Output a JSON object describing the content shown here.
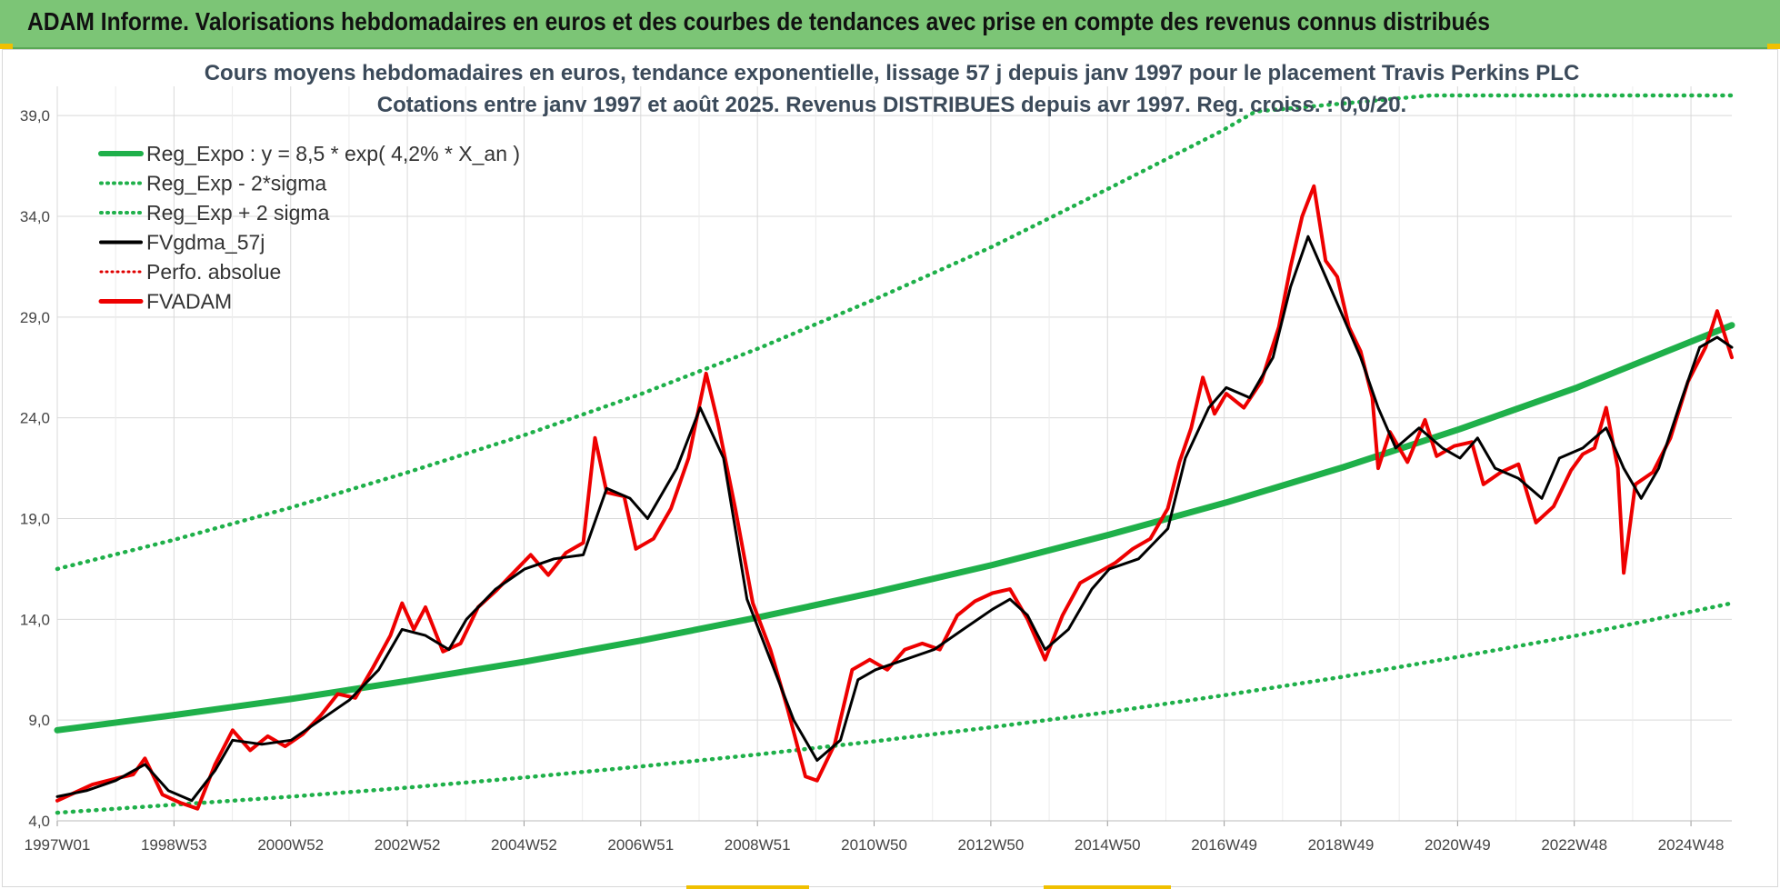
{
  "header": {
    "title": "ADAM Informe. Valorisations hebdomadaires en euros et des courbes de tendances avec prise en compte des revenus connus distribués"
  },
  "colors": {
    "header_bg": "#7cc576",
    "reg_expo": "#1fb04a",
    "sigma": "#1fb04a",
    "fvgdma": "#000000",
    "perfo": "#e00000",
    "fvadam": "#ee0000",
    "grid": "#d9d9d9"
  },
  "chart_data": {
    "type": "line",
    "title_line1": "Cours moyens hebdomadaires en euros, tendance exponentielle, lissage 57 j depuis janv 1997 pour le placement Travis Perkins PLC",
    "title_line2": "Cotations entre janv 1997 et août 2025. Revenus DISTRIBUES depuis avr 1997. Reg. croiss. : 0,0/20.",
    "x_ticks": [
      "1997W01",
      "1998W53",
      "2000W52",
      "2002W52",
      "2004W52",
      "2006W51",
      "2008W51",
      "2010W50",
      "2012W50",
      "2014W50",
      "2016W49",
      "2018W49",
      "2020W49",
      "2022W48",
      "2024W48"
    ],
    "x_range": [
      1997.0,
      2025.65
    ],
    "y_ticks": [
      "4,0",
      "9,0",
      "14,0",
      "19,0",
      "24,0",
      "29,0",
      "34,0",
      "39,0"
    ],
    "ylim": [
      4.0,
      40.0
    ],
    "grid": true,
    "legend_position": "top-left",
    "legend": [
      {
        "label": "Reg_Expo : y = 8,5 * exp( 4,2% *  X_an )",
        "style": "solid-green"
      },
      {
        "label": "Reg_Exp - 2*sigma",
        "style": "dotted-green"
      },
      {
        "label": "Reg_Exp + 2 sigma",
        "style": "dotted-green"
      },
      {
        "label": "FVgdma_57j",
        "style": "solid-black"
      },
      {
        "label": "Perfo. absolue",
        "style": "dotted-red"
      },
      {
        "label": "FVADAM",
        "style": "solid-red"
      }
    ],
    "series": [
      {
        "name": "Reg_Expo : y = 8,5 * exp( 4,2% *  X_an )",
        "points": [
          [
            1997.0,
            8.5
          ],
          [
            1999.0,
            9.25
          ],
          [
            2001.0,
            10.05
          ],
          [
            2003.0,
            10.95
          ],
          [
            2005.0,
            11.9
          ],
          [
            2007.0,
            12.95
          ],
          [
            2009.0,
            14.1
          ],
          [
            2011.0,
            15.35
          ],
          [
            2013.0,
            16.7
          ],
          [
            2015.0,
            18.2
          ],
          [
            2017.0,
            19.8
          ],
          [
            2019.0,
            21.55
          ],
          [
            2021.0,
            23.45
          ],
          [
            2023.0,
            25.5
          ],
          [
            2025.65,
            28.6
          ]
        ]
      },
      {
        "name": "Reg_Exp - 2*sigma",
        "points": [
          [
            1997.0,
            4.4
          ],
          [
            1999.0,
            4.8
          ],
          [
            2001.0,
            5.2
          ],
          [
            2003.0,
            5.65
          ],
          [
            2005.0,
            6.15
          ],
          [
            2007.0,
            6.7
          ],
          [
            2009.0,
            7.3
          ],
          [
            2011.0,
            7.95
          ],
          [
            2013.0,
            8.65
          ],
          [
            2015.0,
            9.4
          ],
          [
            2017.0,
            10.25
          ],
          [
            2019.0,
            11.15
          ],
          [
            2021.0,
            12.15
          ],
          [
            2023.0,
            13.2
          ],
          [
            2025.65,
            14.8
          ]
        ]
      },
      {
        "name": "Reg_Exp + 2 sigma",
        "points": [
          [
            1997.0,
            16.5
          ],
          [
            1999.0,
            17.95
          ],
          [
            2001.0,
            19.55
          ],
          [
            2003.0,
            21.3
          ],
          [
            2005.0,
            23.15
          ],
          [
            2007.0,
            25.2
          ],
          [
            2009.0,
            27.45
          ],
          [
            2011.0,
            29.9
          ],
          [
            2013.0,
            32.5
          ],
          [
            2015.0,
            35.4
          ],
          [
            2016.9,
            38.2
          ],
          [
            2017.5,
            39.2
          ],
          [
            2020.5,
            40.0
          ],
          [
            2025.65,
            40.0
          ]
        ]
      },
      {
        "name": "FVgdma_57j",
        "points": [
          [
            1997.0,
            5.2
          ],
          [
            1997.5,
            5.5
          ],
          [
            1998.0,
            6.0
          ],
          [
            1998.5,
            6.8
          ],
          [
            1998.9,
            5.5
          ],
          [
            1999.3,
            5.0
          ],
          [
            1999.7,
            6.5
          ],
          [
            2000.0,
            8.0
          ],
          [
            2000.5,
            7.8
          ],
          [
            2001.0,
            8.0
          ],
          [
            2001.5,
            9.0
          ],
          [
            2002.0,
            10.0
          ],
          [
            2002.5,
            11.5
          ],
          [
            2002.9,
            13.5
          ],
          [
            2003.3,
            13.2
          ],
          [
            2003.7,
            12.5
          ],
          [
            2004.0,
            14.0
          ],
          [
            2004.5,
            15.5
          ],
          [
            2005.0,
            16.5
          ],
          [
            2005.5,
            17.0
          ],
          [
            2006.0,
            17.2
          ],
          [
            2006.4,
            20.5
          ],
          [
            2006.8,
            20.0
          ],
          [
            2007.1,
            19.0
          ],
          [
            2007.6,
            21.5
          ],
          [
            2008.0,
            24.5
          ],
          [
            2008.4,
            22.0
          ],
          [
            2008.8,
            15.0
          ],
          [
            2009.2,
            12.0
          ],
          [
            2009.6,
            9.0
          ],
          [
            2010.0,
            7.0
          ],
          [
            2010.4,
            8.0
          ],
          [
            2010.7,
            11.0
          ],
          [
            2011.0,
            11.5
          ],
          [
            2011.5,
            12.0
          ],
          [
            2012.0,
            12.5
          ],
          [
            2012.5,
            13.5
          ],
          [
            2013.0,
            14.5
          ],
          [
            2013.3,
            15.0
          ],
          [
            2013.6,
            14.2
          ],
          [
            2013.9,
            12.5
          ],
          [
            2014.3,
            13.5
          ],
          [
            2014.7,
            15.5
          ],
          [
            2015.0,
            16.5
          ],
          [
            2015.5,
            17.0
          ],
          [
            2016.0,
            18.5
          ],
          [
            2016.3,
            22.0
          ],
          [
            2016.7,
            24.5
          ],
          [
            2017.0,
            25.5
          ],
          [
            2017.4,
            25.0
          ],
          [
            2017.8,
            27.0
          ],
          [
            2018.1,
            30.5
          ],
          [
            2018.4,
            33.0
          ],
          [
            2018.7,
            31.0
          ],
          [
            2019.0,
            29.0
          ],
          [
            2019.3,
            27.0
          ],
          [
            2019.6,
            24.5
          ],
          [
            2019.9,
            22.5
          ],
          [
            2020.3,
            23.5
          ],
          [
            2020.7,
            22.5
          ],
          [
            2021.0,
            22.0
          ],
          [
            2021.3,
            23.0
          ],
          [
            2021.6,
            21.5
          ],
          [
            2022.0,
            21.0
          ],
          [
            2022.4,
            20.0
          ],
          [
            2022.7,
            22.0
          ],
          [
            2023.1,
            22.5
          ],
          [
            2023.5,
            23.5
          ],
          [
            2023.8,
            21.5
          ],
          [
            2024.1,
            20.0
          ],
          [
            2024.4,
            21.5
          ],
          [
            2024.8,
            25.0
          ],
          [
            2025.1,
            27.5
          ],
          [
            2025.4,
            28.0
          ],
          [
            2025.65,
            27.5
          ]
        ]
      },
      {
        "name": "FVADAM",
        "points": [
          [
            1997.0,
            5.0
          ],
          [
            1997.3,
            5.4
          ],
          [
            1997.6,
            5.8
          ],
          [
            1998.0,
            6.1
          ],
          [
            1998.3,
            6.3
          ],
          [
            1998.5,
            7.1
          ],
          [
            1998.8,
            5.3
          ],
          [
            1999.1,
            4.9
          ],
          [
            1999.4,
            4.6
          ],
          [
            1999.7,
            6.8
          ],
          [
            2000.0,
            8.5
          ],
          [
            2000.3,
            7.5
          ],
          [
            2000.6,
            8.2
          ],
          [
            2000.9,
            7.7
          ],
          [
            2001.2,
            8.3
          ],
          [
            2001.5,
            9.2
          ],
          [
            2001.8,
            10.3
          ],
          [
            2002.1,
            10.1
          ],
          [
            2002.4,
            11.6
          ],
          [
            2002.7,
            13.2
          ],
          [
            2002.9,
            14.8
          ],
          [
            2003.1,
            13.5
          ],
          [
            2003.3,
            14.6
          ],
          [
            2003.6,
            12.4
          ],
          [
            2003.9,
            12.8
          ],
          [
            2004.2,
            14.6
          ],
          [
            2004.5,
            15.4
          ],
          [
            2004.8,
            16.3
          ],
          [
            2005.1,
            17.2
          ],
          [
            2005.4,
            16.2
          ],
          [
            2005.7,
            17.3
          ],
          [
            2006.0,
            17.8
          ],
          [
            2006.2,
            23.0
          ],
          [
            2006.4,
            20.3
          ],
          [
            2006.7,
            20.1
          ],
          [
            2006.9,
            17.5
          ],
          [
            2007.2,
            18.0
          ],
          [
            2007.5,
            19.5
          ],
          [
            2007.8,
            22.0
          ],
          [
            2008.0,
            24.8
          ],
          [
            2008.1,
            26.2
          ],
          [
            2008.3,
            23.8
          ],
          [
            2008.6,
            19.5
          ],
          [
            2008.9,
            14.8
          ],
          [
            2009.2,
            12.5
          ],
          [
            2009.5,
            9.5
          ],
          [
            2009.8,
            6.2
          ],
          [
            2010.0,
            6.0
          ],
          [
            2010.3,
            7.8
          ],
          [
            2010.6,
            11.5
          ],
          [
            2010.9,
            12.0
          ],
          [
            2011.2,
            11.5
          ],
          [
            2011.5,
            12.5
          ],
          [
            2011.8,
            12.8
          ],
          [
            2012.1,
            12.5
          ],
          [
            2012.4,
            14.2
          ],
          [
            2012.7,
            14.9
          ],
          [
            2013.0,
            15.3
          ],
          [
            2013.3,
            15.5
          ],
          [
            2013.6,
            14.0
          ],
          [
            2013.9,
            12.0
          ],
          [
            2014.2,
            14.2
          ],
          [
            2014.5,
            15.8
          ],
          [
            2014.8,
            16.3
          ],
          [
            2015.1,
            16.8
          ],
          [
            2015.4,
            17.5
          ],
          [
            2015.7,
            18.0
          ],
          [
            2016.0,
            19.5
          ],
          [
            2016.2,
            21.8
          ],
          [
            2016.4,
            23.5
          ],
          [
            2016.6,
            26.0
          ],
          [
            2016.8,
            24.2
          ],
          [
            2017.0,
            25.2
          ],
          [
            2017.3,
            24.5
          ],
          [
            2017.6,
            25.8
          ],
          [
            2017.9,
            28.5
          ],
          [
            2018.1,
            31.5
          ],
          [
            2018.3,
            34.0
          ],
          [
            2018.5,
            35.5
          ],
          [
            2018.7,
            31.8
          ],
          [
            2018.9,
            31.0
          ],
          [
            2019.1,
            28.5
          ],
          [
            2019.3,
            27.3
          ],
          [
            2019.5,
            25.0
          ],
          [
            2019.6,
            21.5
          ],
          [
            2019.8,
            23.3
          ],
          [
            2020.1,
            21.8
          ],
          [
            2020.4,
            23.9
          ],
          [
            2020.6,
            22.1
          ],
          [
            2020.9,
            22.6
          ],
          [
            2021.2,
            22.8
          ],
          [
            2021.4,
            20.7
          ],
          [
            2021.7,
            21.3
          ],
          [
            2022.0,
            21.7
          ],
          [
            2022.3,
            18.8
          ],
          [
            2022.6,
            19.6
          ],
          [
            2022.9,
            21.4
          ],
          [
            2023.1,
            22.2
          ],
          [
            2023.3,
            22.5
          ],
          [
            2023.5,
            24.5
          ],
          [
            2023.7,
            21.5
          ],
          [
            2023.8,
            16.3
          ],
          [
            2024.0,
            20.7
          ],
          [
            2024.3,
            21.3
          ],
          [
            2024.6,
            23.0
          ],
          [
            2024.9,
            25.8
          ],
          [
            2025.2,
            27.5
          ],
          [
            2025.4,
            29.3
          ],
          [
            2025.65,
            27.0
          ]
        ]
      }
    ]
  }
}
